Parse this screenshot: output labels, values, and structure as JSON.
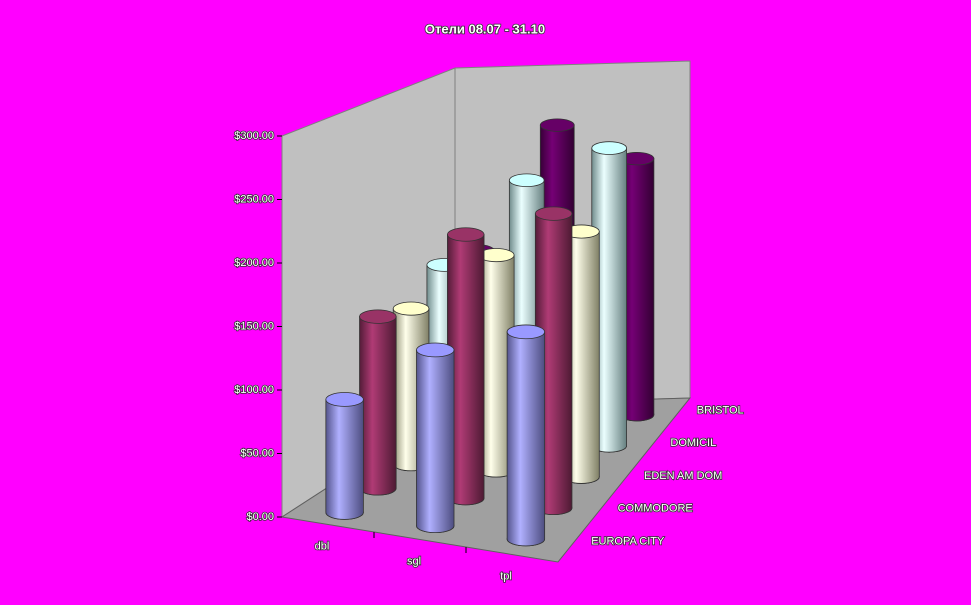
{
  "chart_data": {
    "type": "bar3d",
    "title": "Отели 08.07 - 31.10",
    "categories": [
      "dbl",
      "sgl",
      "tpl"
    ],
    "series": [
      {
        "name": "EUROPA CITY",
        "color": "#9999ff",
        "values": [
          90,
          140,
          165
        ]
      },
      {
        "name": "COMMODORE",
        "color": "#993366",
        "values": [
          140,
          215,
          240
        ]
      },
      {
        "name": "EDEN AM DOM",
        "color": "#ffffcc",
        "values": [
          130,
          180,
          205
        ]
      },
      {
        "name": "DOMICIL",
        "color": "#ccffff",
        "values": [
          150,
          225,
          255
        ]
      },
      {
        "name": "BRISTOL",
        "color": "#660066",
        "values": [
          145,
          255,
          225
        ]
      }
    ],
    "ylim": [
      0,
      300
    ],
    "yticks": [
      {
        "value": 0,
        "label": "$0.00"
      },
      {
        "value": 50,
        "label": "$50.00"
      },
      {
        "value": 100,
        "label": "$100.00"
      },
      {
        "value": 150,
        "label": "$150.00"
      },
      {
        "value": 200,
        "label": "$200.00"
      },
      {
        "value": 250,
        "label": "$250.00"
      },
      {
        "value": 300,
        "label": "$300.00"
      }
    ]
  }
}
